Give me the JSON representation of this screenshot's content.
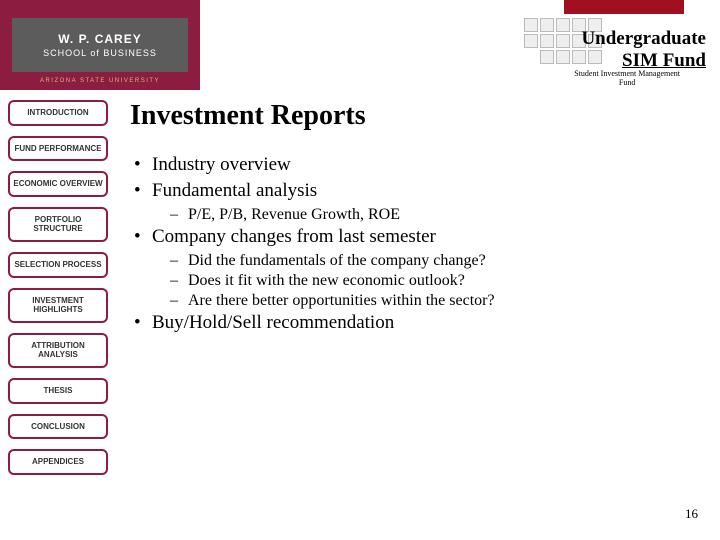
{
  "colors": {
    "maroon": "#8c1d40",
    "logo_gray": "#5c5c5c",
    "gold": "#d0b87a",
    "red_bar": "#a01020"
  },
  "logo": {
    "line1": "W. P. CAREY",
    "line2": "SCHOOL of BUSINESS",
    "sub": "ARIZONA STATE UNIVERSITY"
  },
  "header": {
    "title_line1": "Undergraduate",
    "title_line2": "SIM Fund",
    "subtitle_line1": "Student Investment Management",
    "subtitle_line2": "Fund"
  },
  "nav": [
    "INTRODUCTION",
    "FUND PERFORMANCE",
    "ECONOMIC OVERVIEW",
    "PORTFOLIO STRUCTURE",
    "SELECTION PROCESS",
    "INVESTMENT HIGHLIGHTS",
    "ATTRIBUTION ANALYSIS",
    "THESIS",
    "CONCLUSION",
    "APPENDICES"
  ],
  "slide": {
    "title": "Investment Reports",
    "b1": "Industry overview",
    "b2": "Fundamental analysis",
    "b2_1": "P/E, P/B, Revenue Growth, ROE",
    "b3": "Company changes from last semester",
    "b3_1": "Did the fundamentals of the company change?",
    "b3_2": "Does it fit with the new economic outlook?",
    "b3_3": "Are there better opportunities within the sector?",
    "b4": "Buy/Hold/Sell recommendation"
  },
  "page_number": "16"
}
